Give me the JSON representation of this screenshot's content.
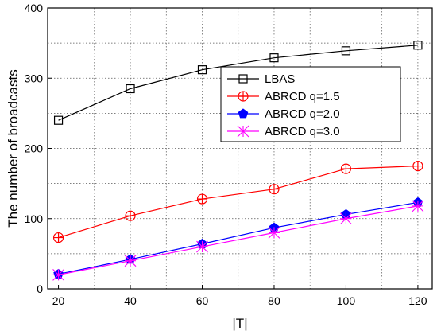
{
  "chart_data": {
    "type": "line",
    "title": "",
    "xlabel": "|T|",
    "ylabel": "The number of broadcasts",
    "x": [
      20,
      40,
      60,
      80,
      100,
      120
    ],
    "xticks": [
      "20",
      "40",
      "60",
      "80",
      "100",
      "120"
    ],
    "yticks": [
      "0",
      "100",
      "200",
      "300",
      "400"
    ],
    "xlim": [
      17,
      124
    ],
    "ylim": [
      0,
      400
    ],
    "grid": true,
    "legend_position": "middle-right",
    "series": [
      {
        "name": "LBAS",
        "values": [
          240,
          285,
          312,
          329,
          339,
          347
        ],
        "color": "#000000",
        "marker": "square"
      },
      {
        "name": "ABRCD q=1.5",
        "values": [
          73,
          104,
          128,
          142,
          171,
          175
        ],
        "color": "#ff0000",
        "marker": "circle-plus"
      },
      {
        "name": "ABRCD q=2.0",
        "values": [
          21,
          42,
          64,
          87,
          106,
          123
        ],
        "color": "#0000ff",
        "marker": "pentagon"
      },
      {
        "name": "ABRCD q=3.0",
        "values": [
          20,
          40,
          60,
          80,
          100,
          118
        ],
        "color": "#ff00ff",
        "marker": "star"
      }
    ]
  }
}
